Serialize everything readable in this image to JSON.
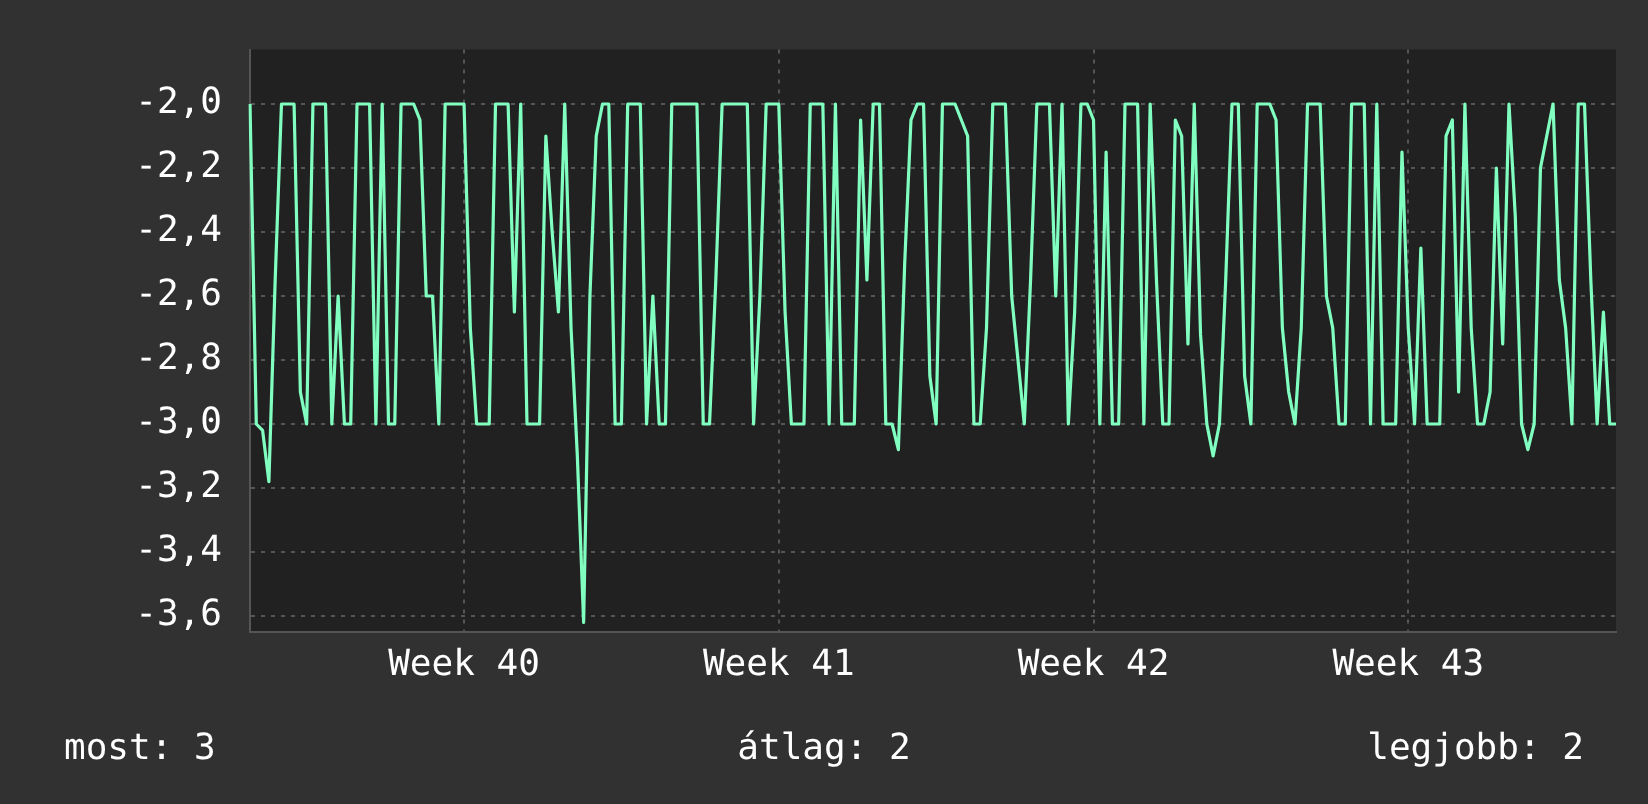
{
  "chart_data": {
    "type": "line",
    "color": "#80ffc0",
    "grid": true,
    "legend": false,
    "marker": "none",
    "line_style": "solid",
    "ylim": [
      -3.65,
      -1.83
    ],
    "yticks": [
      {
        "value": -2,
        "label": "-2,0"
      },
      {
        "value": -2.2,
        "label": "-2,2"
      },
      {
        "value": -2.4,
        "label": "-2,4"
      },
      {
        "value": -2.6,
        "label": "-2,6"
      },
      {
        "value": -2.8,
        "label": "-2,8"
      },
      {
        "value": -3,
        "label": "-3,0"
      },
      {
        "value": -3.2,
        "label": "-3,2"
      },
      {
        "value": -3.4,
        "label": "-3,4"
      },
      {
        "value": -3.6,
        "label": "-3,6"
      }
    ],
    "categories": [
      null,
      null,
      null,
      null,
      null,
      null,
      null,
      null,
      null,
      null,
      null,
      null,
      null,
      null,
      null,
      null,
      null,
      null,
      null,
      null,
      null,
      null,
      null,
      null,
      null,
      null,
      null,
      null,
      null,
      null,
      null,
      null,
      null,
      null,
      "Week 40",
      null,
      null,
      null,
      null,
      null,
      null,
      null,
      null,
      null,
      null,
      null,
      null,
      null,
      null,
      null,
      null,
      null,
      null,
      null,
      null,
      null,
      null,
      null,
      null,
      null,
      null,
      null,
      null,
      null,
      null,
      null,
      null,
      null,
      null,
      null,
      null,
      null,
      null,
      null,
      null,
      null,
      null,
      null,
      null,
      null,
      null,
      null,
      null,
      null,
      "Week 41",
      null,
      null,
      null,
      null,
      null,
      null,
      null,
      null,
      null,
      null,
      null,
      null,
      null,
      null,
      null,
      null,
      null,
      null,
      null,
      null,
      null,
      null,
      null,
      null,
      null,
      null,
      null,
      null,
      null,
      null,
      null,
      null,
      null,
      null,
      null,
      null,
      null,
      null,
      null,
      null,
      null,
      null,
      null,
      null,
      null,
      null,
      null,
      null,
      null,
      "Week 42",
      null,
      null,
      null,
      null,
      null,
      null,
      null,
      null,
      null,
      null,
      null,
      null,
      null,
      null,
      null,
      null,
      null,
      null,
      null,
      null,
      null,
      null,
      null,
      null,
      null,
      null,
      null,
      null,
      null,
      null,
      null,
      null,
      null,
      null,
      null,
      null,
      null,
      null,
      null,
      null,
      null,
      null,
      null,
      null,
      null,
      null,
      null,
      null,
      null,
      "Week 43",
      null,
      null,
      null,
      null,
      null,
      null,
      null,
      null,
      null,
      null,
      null,
      null,
      null,
      null,
      null,
      null,
      null,
      null,
      null,
      null,
      null,
      null,
      null,
      null,
      null,
      null,
      null,
      null,
      null,
      null,
      null,
      null,
      null
    ],
    "values": [
      -2.0,
      -3.0,
      -3.02,
      -3.18,
      -2.55,
      -2.0,
      -2.0,
      -2.0,
      -2.9,
      -3.0,
      -2.0,
      -2.0,
      -2.0,
      -3.0,
      -2.6,
      -3.0,
      -3.0,
      -2.0,
      -2.0,
      -2.0,
      -3.0,
      -2.0,
      -3.0,
      -3.0,
      -2.0,
      -2.0,
      -2.0,
      -2.05,
      -2.6,
      -2.6,
      -3.0,
      -2.0,
      -2.0,
      -2.0,
      -2.0,
      -2.7,
      -3.0,
      -3.0,
      -3.0,
      -2.0,
      -2.0,
      -2.0,
      -2.65,
      -2.0,
      -3.0,
      -3.0,
      -3.0,
      -2.1,
      -2.4,
      -2.65,
      -2.0,
      -2.7,
      -3.1,
      -3.62,
      -2.6,
      -2.1,
      -2.0,
      -2.0,
      -3.0,
      -3.0,
      -2.0,
      -2.0,
      -2.0,
      -3.0,
      -2.6,
      -3.0,
      -3.0,
      -2.0,
      -2.0,
      -2.0,
      -2.0,
      -2.0,
      -3.0,
      -3.0,
      -2.55,
      -2.0,
      -2.0,
      -2.0,
      -2.0,
      -2.0,
      -3.0,
      -2.6,
      -2.0,
      -2.0,
      -2.0,
      -2.65,
      -3.0,
      -3.0,
      -3.0,
      -2.0,
      -2.0,
      -2.0,
      -3.0,
      -2.0,
      -3.0,
      -3.0,
      -3.0,
      -2.05,
      -2.55,
      -2.0,
      -2.0,
      -3.0,
      -3.0,
      -3.08,
      -2.5,
      -2.05,
      -2.0,
      -2.0,
      -2.85,
      -3.0,
      -2.0,
      -2.0,
      -2.0,
      -2.05,
      -2.1,
      -3.0,
      -3.0,
      -2.7,
      -2.0,
      -2.0,
      -2.0,
      -2.6,
      -2.8,
      -3.0,
      -2.55,
      -2.0,
      -2.0,
      -2.0,
      -2.6,
      -2.0,
      -3.0,
      -2.65,
      -2.0,
      -2.0,
      -2.05,
      -3.0,
      -2.15,
      -3.0,
      -3.0,
      -2.0,
      -2.0,
      -2.0,
      -3.0,
      -2.0,
      -2.55,
      -3.0,
      -3.0,
      -2.05,
      -2.1,
      -2.75,
      -2.0,
      -2.72,
      -3.0,
      -3.1,
      -3.0,
      -2.55,
      -2.0,
      -2.0,
      -2.85,
      -3.0,
      -2.0,
      -2.0,
      -2.0,
      -2.05,
      -2.7,
      -2.9,
      -3.0,
      -2.7,
      -2.0,
      -2.0,
      -2.0,
      -2.6,
      -2.7,
      -3.0,
      -3.0,
      -2.0,
      -2.0,
      -2.0,
      -3.0,
      -2.0,
      -3.0,
      -3.0,
      -3.0,
      -2.15,
      -2.7,
      -3.0,
      -2.45,
      -3.0,
      -3.0,
      -3.0,
      -2.1,
      -2.05,
      -2.9,
      -2.0,
      -2.7,
      -3.0,
      -3.0,
      -2.9,
      -2.2,
      -2.75,
      -2.0,
      -2.35,
      -3.0,
      -3.08,
      -3.0,
      -2.2,
      -2.1,
      -2.0,
      -2.55,
      -2.7,
      -3.0,
      -2.0,
      -2.0,
      -2.55,
      -3.0,
      -2.65,
      -3.0,
      -3.0
    ],
    "annotations": [
      "most: 3",
      "átlag: 2",
      "legjobb: 2"
    ]
  }
}
